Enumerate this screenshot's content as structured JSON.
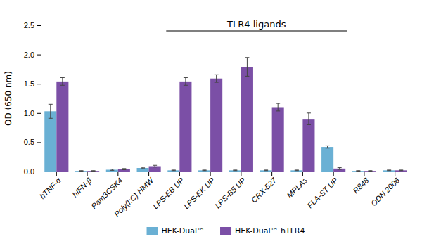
{
  "chart_data": {
    "type": "bar",
    "categories": [
      "hTNF-α",
      "hIFN-β",
      "Pam3CSK4",
      "Poly(I:C) HMW",
      "LPS-EB UP",
      "LPS-EK UP",
      "LPS-B5 UP",
      "CRX-527",
      "MPLAs",
      "FLA-ST UP",
      "R848",
      "ODN 2006"
    ],
    "series": [
      {
        "name": "HEK-Dual™",
        "color": "#6ab0d4",
        "values": [
          1.03,
          0.01,
          0.03,
          0.06,
          0.02,
          0.02,
          0.02,
          0.02,
          0.02,
          0.42,
          0.01,
          0.02
        ],
        "errors": [
          0.12,
          0.005,
          0.01,
          0.01,
          0.005,
          0.005,
          0.005,
          0.005,
          0.005,
          0.02,
          0.005,
          0.005
        ]
      },
      {
        "name": "HEK-Dual™ hTLR4",
        "color": "#7b4fa6",
        "values": [
          1.54,
          0.01,
          0.04,
          0.09,
          1.54,
          1.59,
          1.79,
          1.1,
          0.9,
          0.05,
          0.01,
          0.02
        ],
        "errors": [
          0.065,
          0.005,
          0.01,
          0.015,
          0.065,
          0.065,
          0.16,
          0.065,
          0.1,
          0.015,
          0.005,
          0.005
        ]
      }
    ],
    "ylabel": "OD (650 nm)",
    "ylim": [
      0,
      2.5
    ],
    "yticks": [
      {
        "value": 0,
        "label": "0.0"
      },
      0.5,
      {
        "value": 1,
        "label": "1.0"
      },
      1.5,
      {
        "value": 2,
        "label": "2.0"
      },
      2.5
    ],
    "grid": false,
    "legend": "bottom",
    "annotations": [
      {
        "text": "TLR4 ligands",
        "from": "LPS-EB UP",
        "to": "FLA-ST UP"
      }
    ]
  }
}
